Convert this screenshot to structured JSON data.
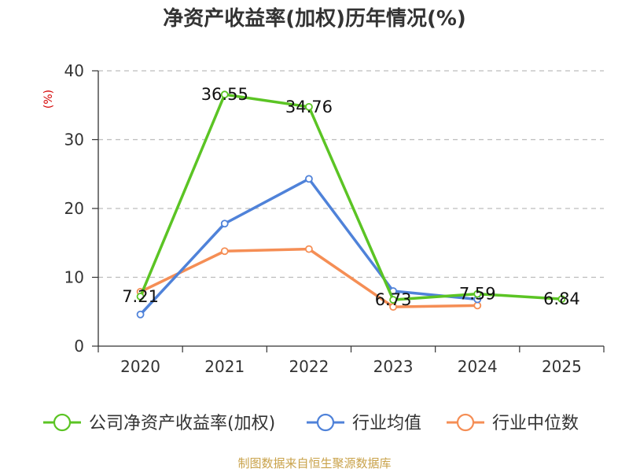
{
  "chart_data": {
    "type": "line",
    "title": "净资产收益率(加权)历年情况(%)",
    "ylabel": "(%)",
    "xlabel": "",
    "ylim": [
      0,
      40
    ],
    "yticks": [
      "0",
      "10",
      "20",
      "30",
      "40"
    ],
    "categories": [
      "2020",
      "2021",
      "2022",
      "2023",
      "2024",
      "2025"
    ],
    "grid": true,
    "legend_position": "bottom",
    "series": [
      {
        "name": "公司净资产收益率(加权)",
        "color": "#5bc424",
        "values": [
          7.21,
          36.55,
          34.76,
          6.73,
          7.59,
          6.84
        ],
        "labels": [
          "7.21",
          "36.55",
          "34.76",
          "6.73",
          "7.59",
          "6.84"
        ]
      },
      {
        "name": "行业均值",
        "color": "#4f82d9",
        "values": [
          4.6,
          17.8,
          24.3,
          8.0,
          6.8,
          null
        ]
      },
      {
        "name": "行业中位数",
        "color": "#f58e55",
        "values": [
          7.9,
          13.8,
          14.1,
          5.7,
          5.9,
          null
        ]
      }
    ],
    "source": "制图数据来自恒生聚源数据库"
  }
}
